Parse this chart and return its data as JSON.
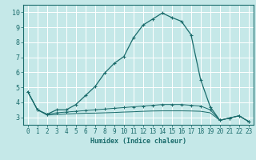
{
  "xlabel": "Humidex (Indice chaleur)",
  "background_color": "#c5e8e8",
  "grid_color": "#ffffff",
  "line_color": "#1a6b6b",
  "xlim": [
    -0.5,
    23.5
  ],
  "ylim": [
    2.5,
    10.5
  ],
  "xtick_labels": [
    "0",
    "1",
    "2",
    "3",
    "4",
    "5",
    "6",
    "7",
    "8",
    "9",
    "10",
    "11",
    "12",
    "13",
    "14",
    "15",
    "16",
    "17",
    "18",
    "19",
    "20",
    "21",
    "22",
    "23"
  ],
  "ytick_values": [
    3,
    4,
    5,
    6,
    7,
    8,
    9,
    10
  ],
  "series1_x": [
    0,
    1,
    2,
    3,
    4,
    5,
    6,
    7,
    8,
    9,
    10,
    11,
    12,
    13,
    14,
    15,
    16,
    17,
    18,
    19,
    20,
    21,
    22,
    23
  ],
  "series1_y": [
    4.7,
    3.5,
    3.2,
    3.5,
    3.5,
    3.85,
    4.45,
    5.05,
    5.95,
    6.6,
    7.05,
    8.3,
    9.15,
    9.55,
    9.95,
    9.65,
    9.4,
    8.5,
    5.5,
    3.7,
    2.8,
    2.95,
    3.1,
    2.72
  ],
  "series2_x": [
    0,
    1,
    2,
    3,
    4,
    5,
    6,
    7,
    8,
    9,
    10,
    11,
    12,
    13,
    14,
    15,
    16,
    17,
    18,
    19,
    20,
    21,
    22,
    23
  ],
  "series2_y": [
    4.7,
    3.5,
    3.2,
    3.3,
    3.35,
    3.4,
    3.45,
    3.5,
    3.55,
    3.6,
    3.65,
    3.7,
    3.75,
    3.8,
    3.85,
    3.85,
    3.85,
    3.8,
    3.75,
    3.5,
    2.8,
    2.95,
    3.1,
    2.72
  ],
  "series3_x": [
    0,
    1,
    2,
    3,
    4,
    5,
    6,
    7,
    8,
    9,
    10,
    11,
    12,
    13,
    14,
    15,
    16,
    17,
    18,
    19,
    20,
    21,
    22,
    23
  ],
  "series3_y": [
    4.7,
    3.5,
    3.15,
    3.18,
    3.22,
    3.25,
    3.27,
    3.28,
    3.3,
    3.32,
    3.35,
    3.37,
    3.4,
    3.42,
    3.43,
    3.43,
    3.43,
    3.42,
    3.4,
    3.3,
    2.8,
    2.95,
    3.1,
    2.72
  ],
  "xlabel_fontsize": 6.0,
  "tick_fontsize": 5.5
}
